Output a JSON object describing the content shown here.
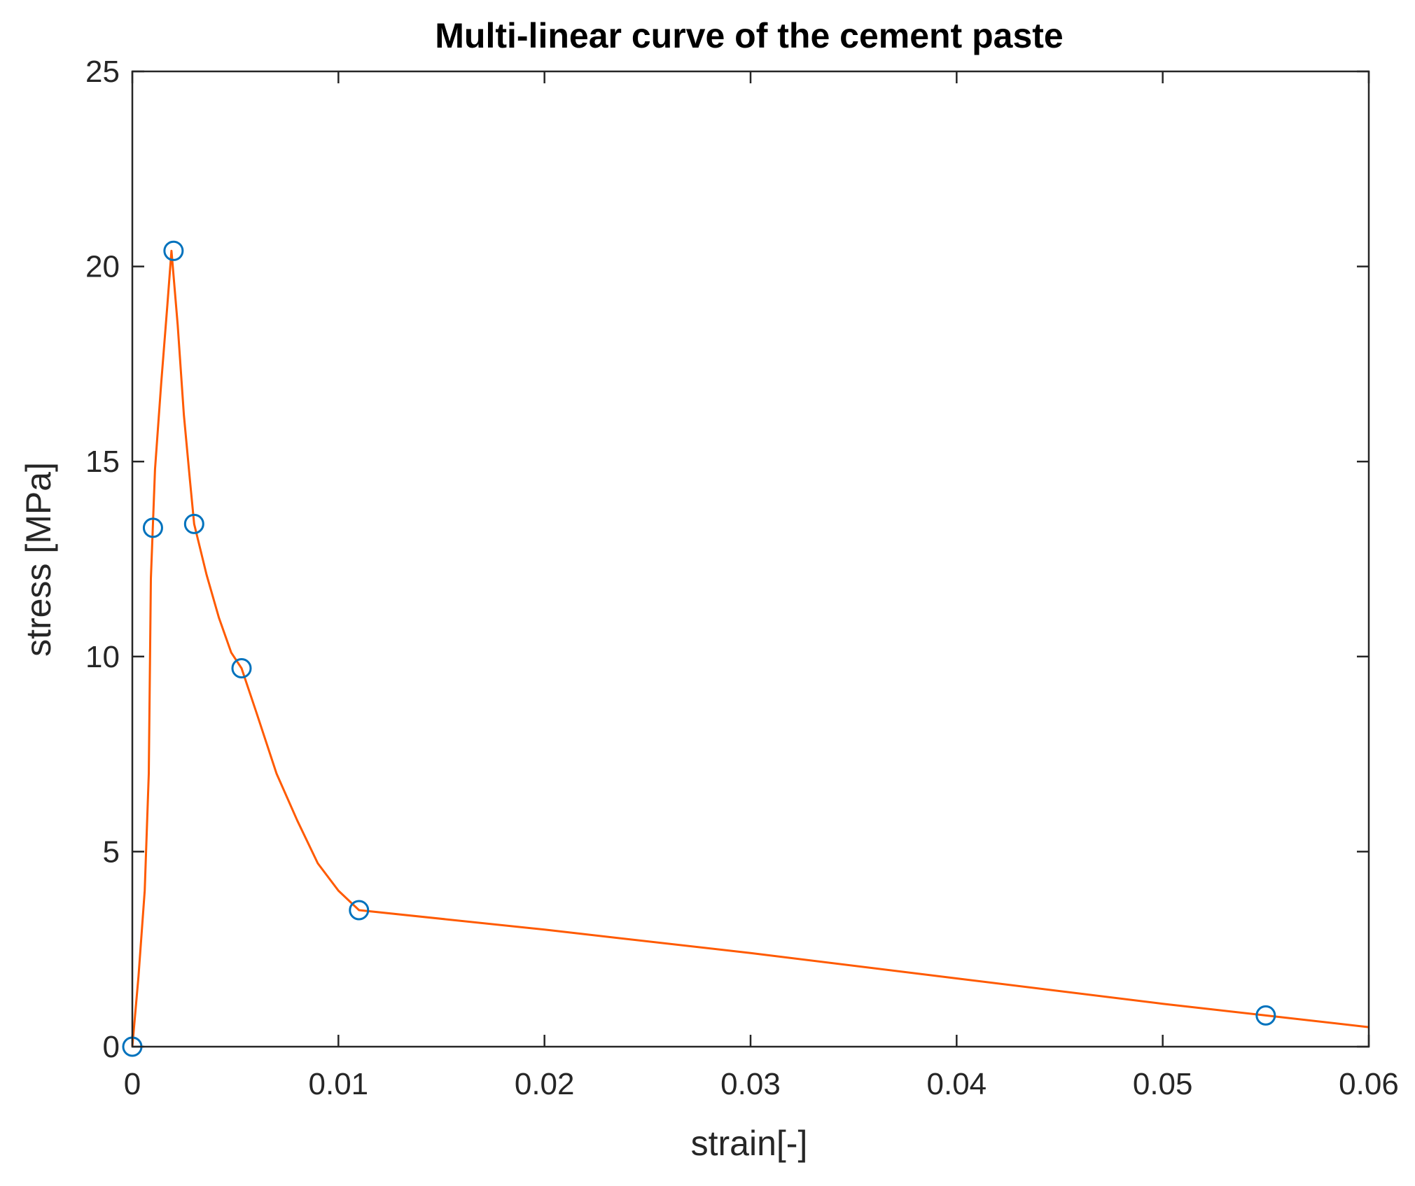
{
  "chart_data": {
    "type": "line",
    "title": "Multi-linear curve of the cement paste",
    "xlabel": "strain[-]",
    "ylabel": "stress  [MPa]",
    "xlim": [
      0,
      0.06
    ],
    "ylim": [
      0,
      25
    ],
    "xticks": [
      0,
      0.01,
      0.02,
      0.03,
      0.04,
      0.05,
      0.06
    ],
    "xtick_labels": [
      "0",
      "0.01",
      "0.02",
      "0.03",
      "0.04",
      "0.05",
      "0.06"
    ],
    "yticks": [
      0,
      5,
      10,
      15,
      20,
      25
    ],
    "ytick_labels": [
      "0",
      "5",
      "10",
      "15",
      "20",
      "25"
    ],
    "grid": false,
    "series": [
      {
        "style": "line",
        "color": "#ff5a00",
        "x": [
          0,
          0.0003,
          0.0006,
          0.0008,
          0.0009,
          0.0011,
          0.0014,
          0.0017,
          0.0019,
          0.0022,
          0.0025,
          0.0028,
          0.003,
          0.0036,
          0.0042,
          0.0048,
          0.0053,
          0.006,
          0.007,
          0.008,
          0.009,
          0.01,
          0.011,
          0.02,
          0.03,
          0.04,
          0.05,
          0.055,
          0.06
        ],
        "y": [
          0,
          1.8,
          4.0,
          7.0,
          12.0,
          14.8,
          17.0,
          19.0,
          20.4,
          18.5,
          16.2,
          14.5,
          13.4,
          12.1,
          11.0,
          10.1,
          9.7,
          8.6,
          7.0,
          5.8,
          4.7,
          4.0,
          3.5,
          3.0,
          2.4,
          1.75,
          1.1,
          0.8,
          0.5
        ]
      },
      {
        "style": "markers",
        "marker": "circle-open",
        "color": "#0072bd",
        "x": [
          0,
          0.001,
          0.002,
          0.003,
          0.0053,
          0.011,
          0.055
        ],
        "y": [
          0,
          13.3,
          20.4,
          13.4,
          9.7,
          3.5,
          0.8
        ]
      }
    ]
  }
}
